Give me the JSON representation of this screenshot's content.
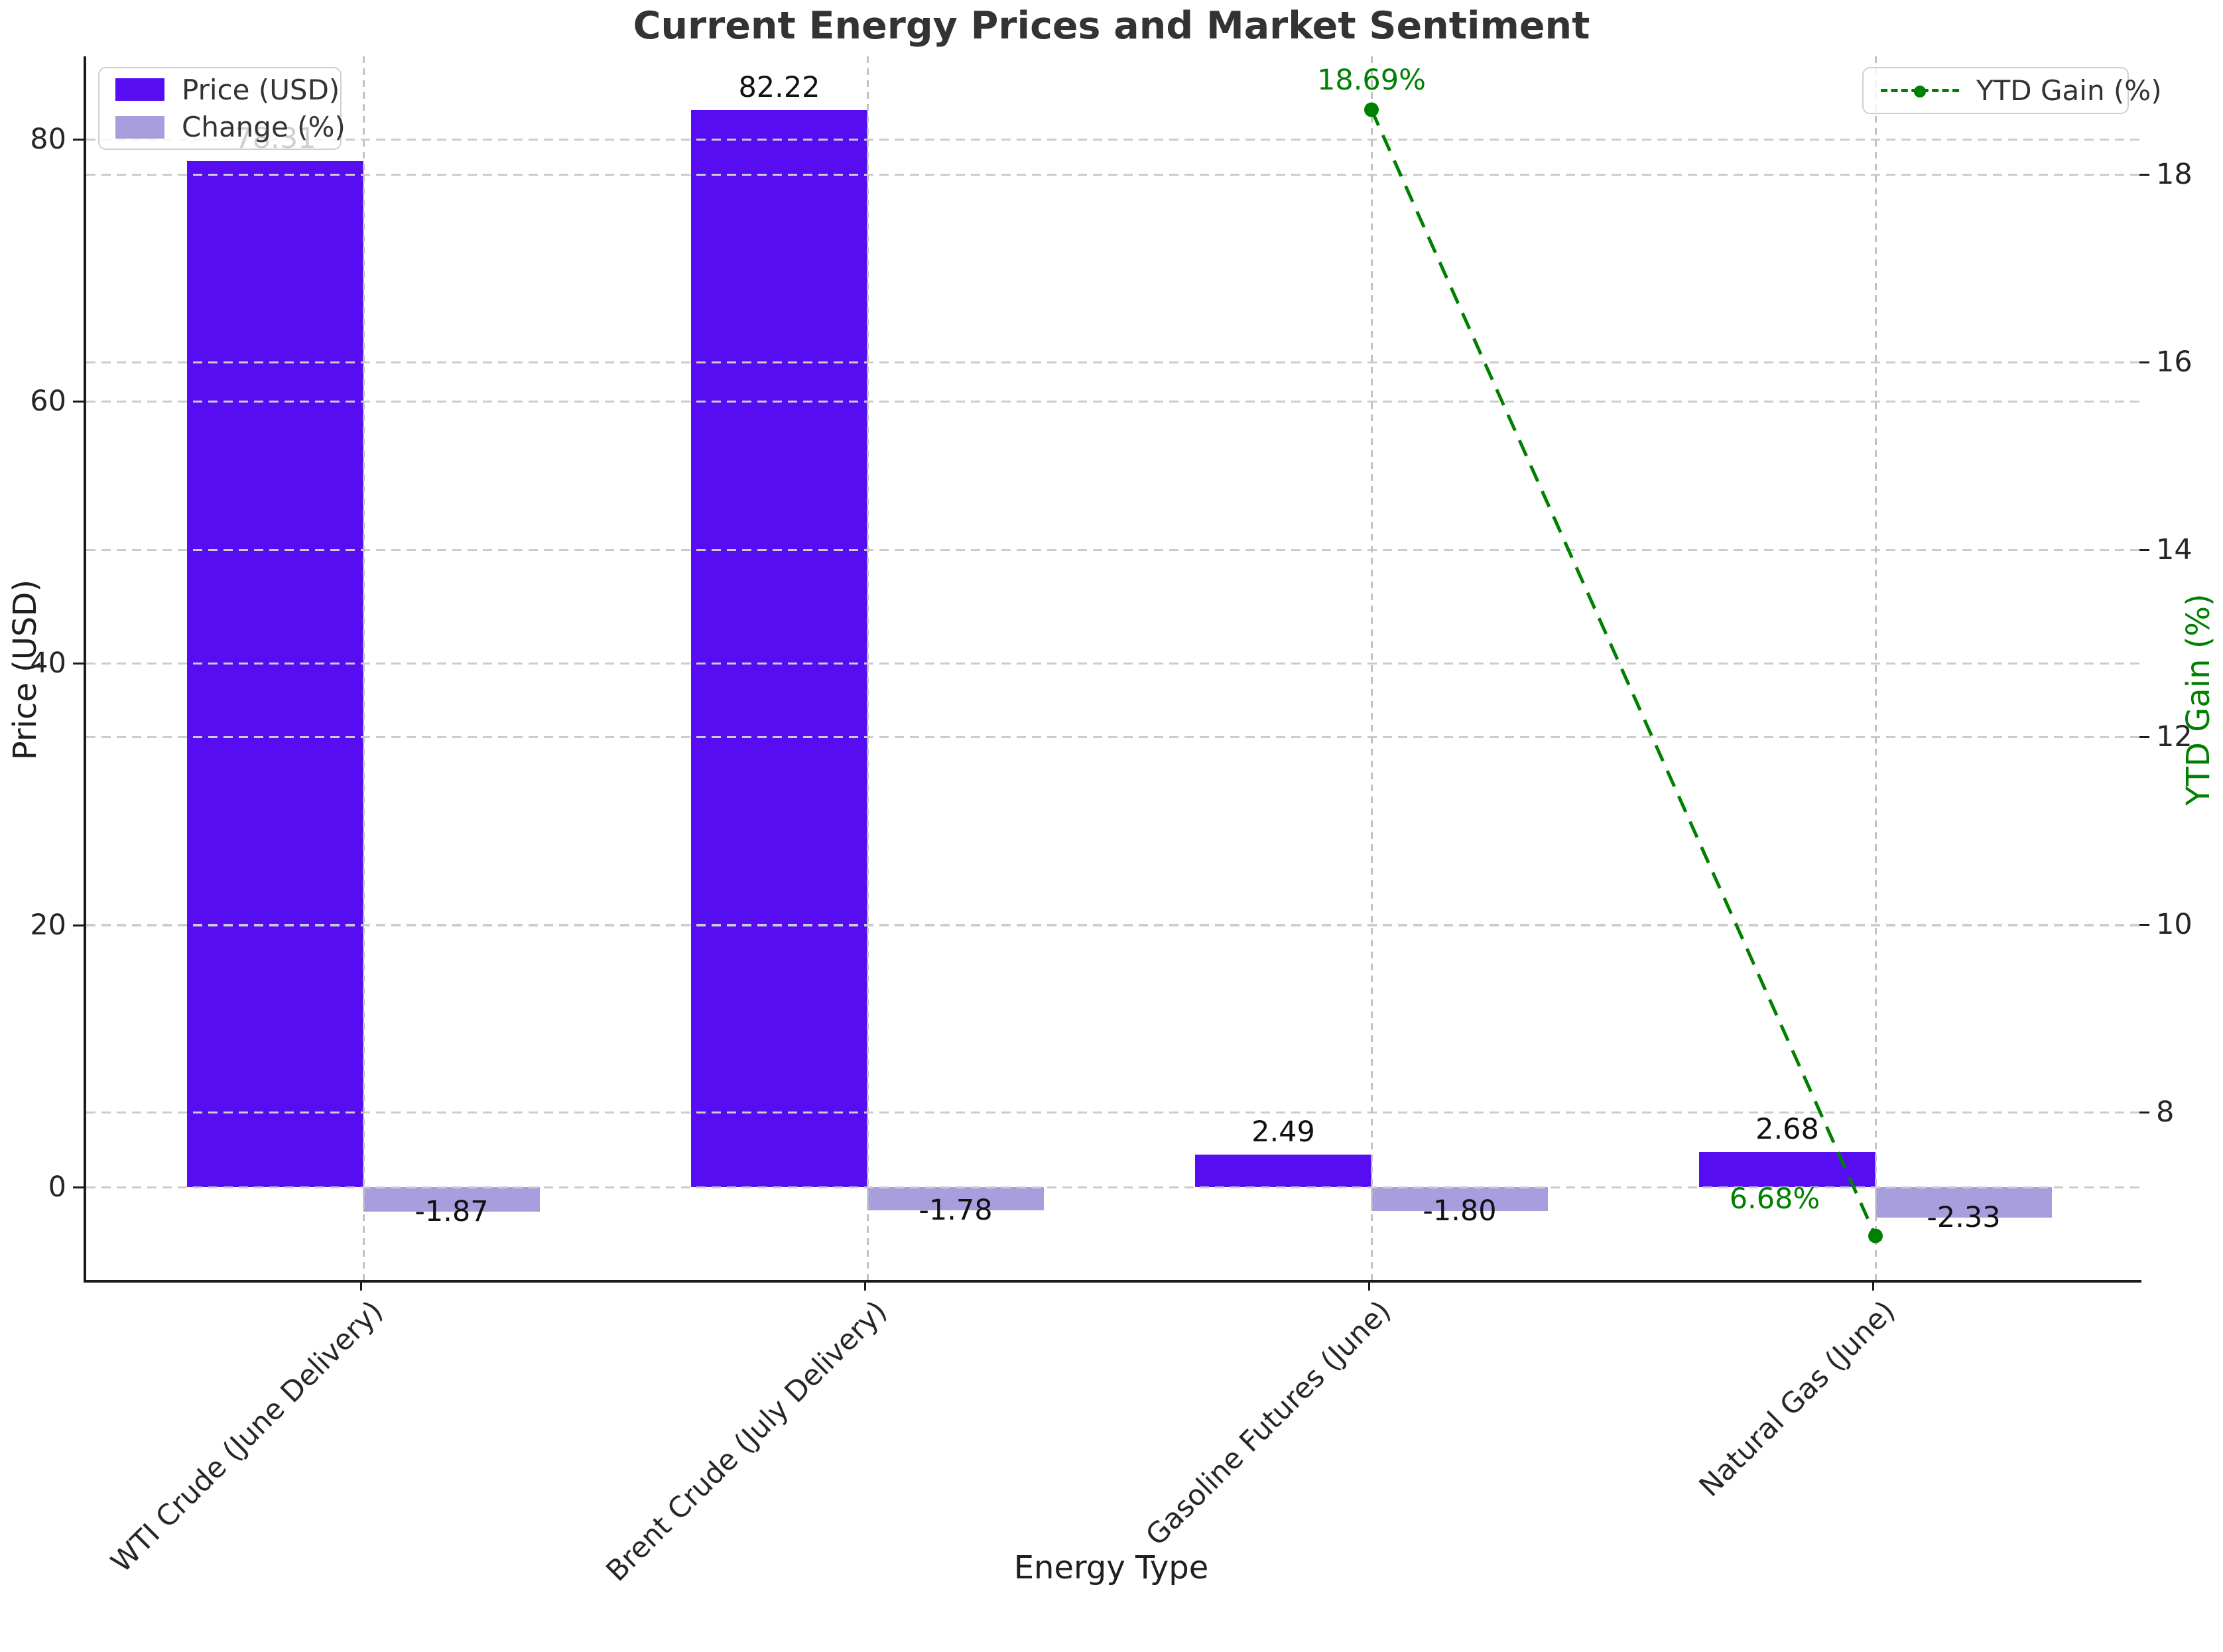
{
  "title": "Current Energy Prices and Market Sentiment",
  "legend": {
    "price_label": "Price (USD)",
    "change_label": "Change (%)",
    "ytd_label": "YTD Gain (%)"
  },
  "colors": {
    "price_bar": "#560df2",
    "change_bar": "#a89edd",
    "ytd_line": "#008000",
    "grid": "#cccccc",
    "spine": "#1a1a1a",
    "title_text": "#333333"
  },
  "chart_data": {
    "type": "bar",
    "title": "Current Energy Prices and Market Sentiment",
    "xlabel": "Energy Type",
    "ylabel_left": "Price (USD)",
    "ylabel_right": "YTD Gain (%)",
    "categories": [
      "WTI Crude (June Delivery)",
      "Brent Crude (July Delivery)",
      "Gasoline Futures (June)",
      "Natural Gas (June)"
    ],
    "series": [
      {
        "name": "Price (USD)",
        "type": "bar",
        "axis": "left",
        "color": "#560df2",
        "values": [
          78.31,
          82.22,
          2.49,
          2.68
        ]
      },
      {
        "name": "Change (%)",
        "type": "bar",
        "axis": "left",
        "color": "#a89edd",
        "values": [
          -1.87,
          -1.78,
          -1.8,
          -2.33
        ]
      },
      {
        "name": "YTD Gain (%)",
        "type": "line",
        "line_style": "dashed",
        "marker": "circle",
        "axis": "right",
        "color": "#008000",
        "values": [
          null,
          null,
          18.69,
          6.68
        ],
        "point_labels": [
          null,
          null,
          "18.69%",
          "6.68%"
        ]
      }
    ],
    "yticks_left": [
      0,
      20,
      40,
      60,
      80
    ],
    "yticks_right": [
      8,
      10,
      12,
      14,
      16,
      18
    ],
    "ylim_left": [
      -7.2,
      86.5
    ],
    "ylim_right": [
      6.2,
      19.3
    ],
    "grid": true,
    "legend_positions": {
      "bars": "upper left",
      "line": "upper right"
    }
  }
}
